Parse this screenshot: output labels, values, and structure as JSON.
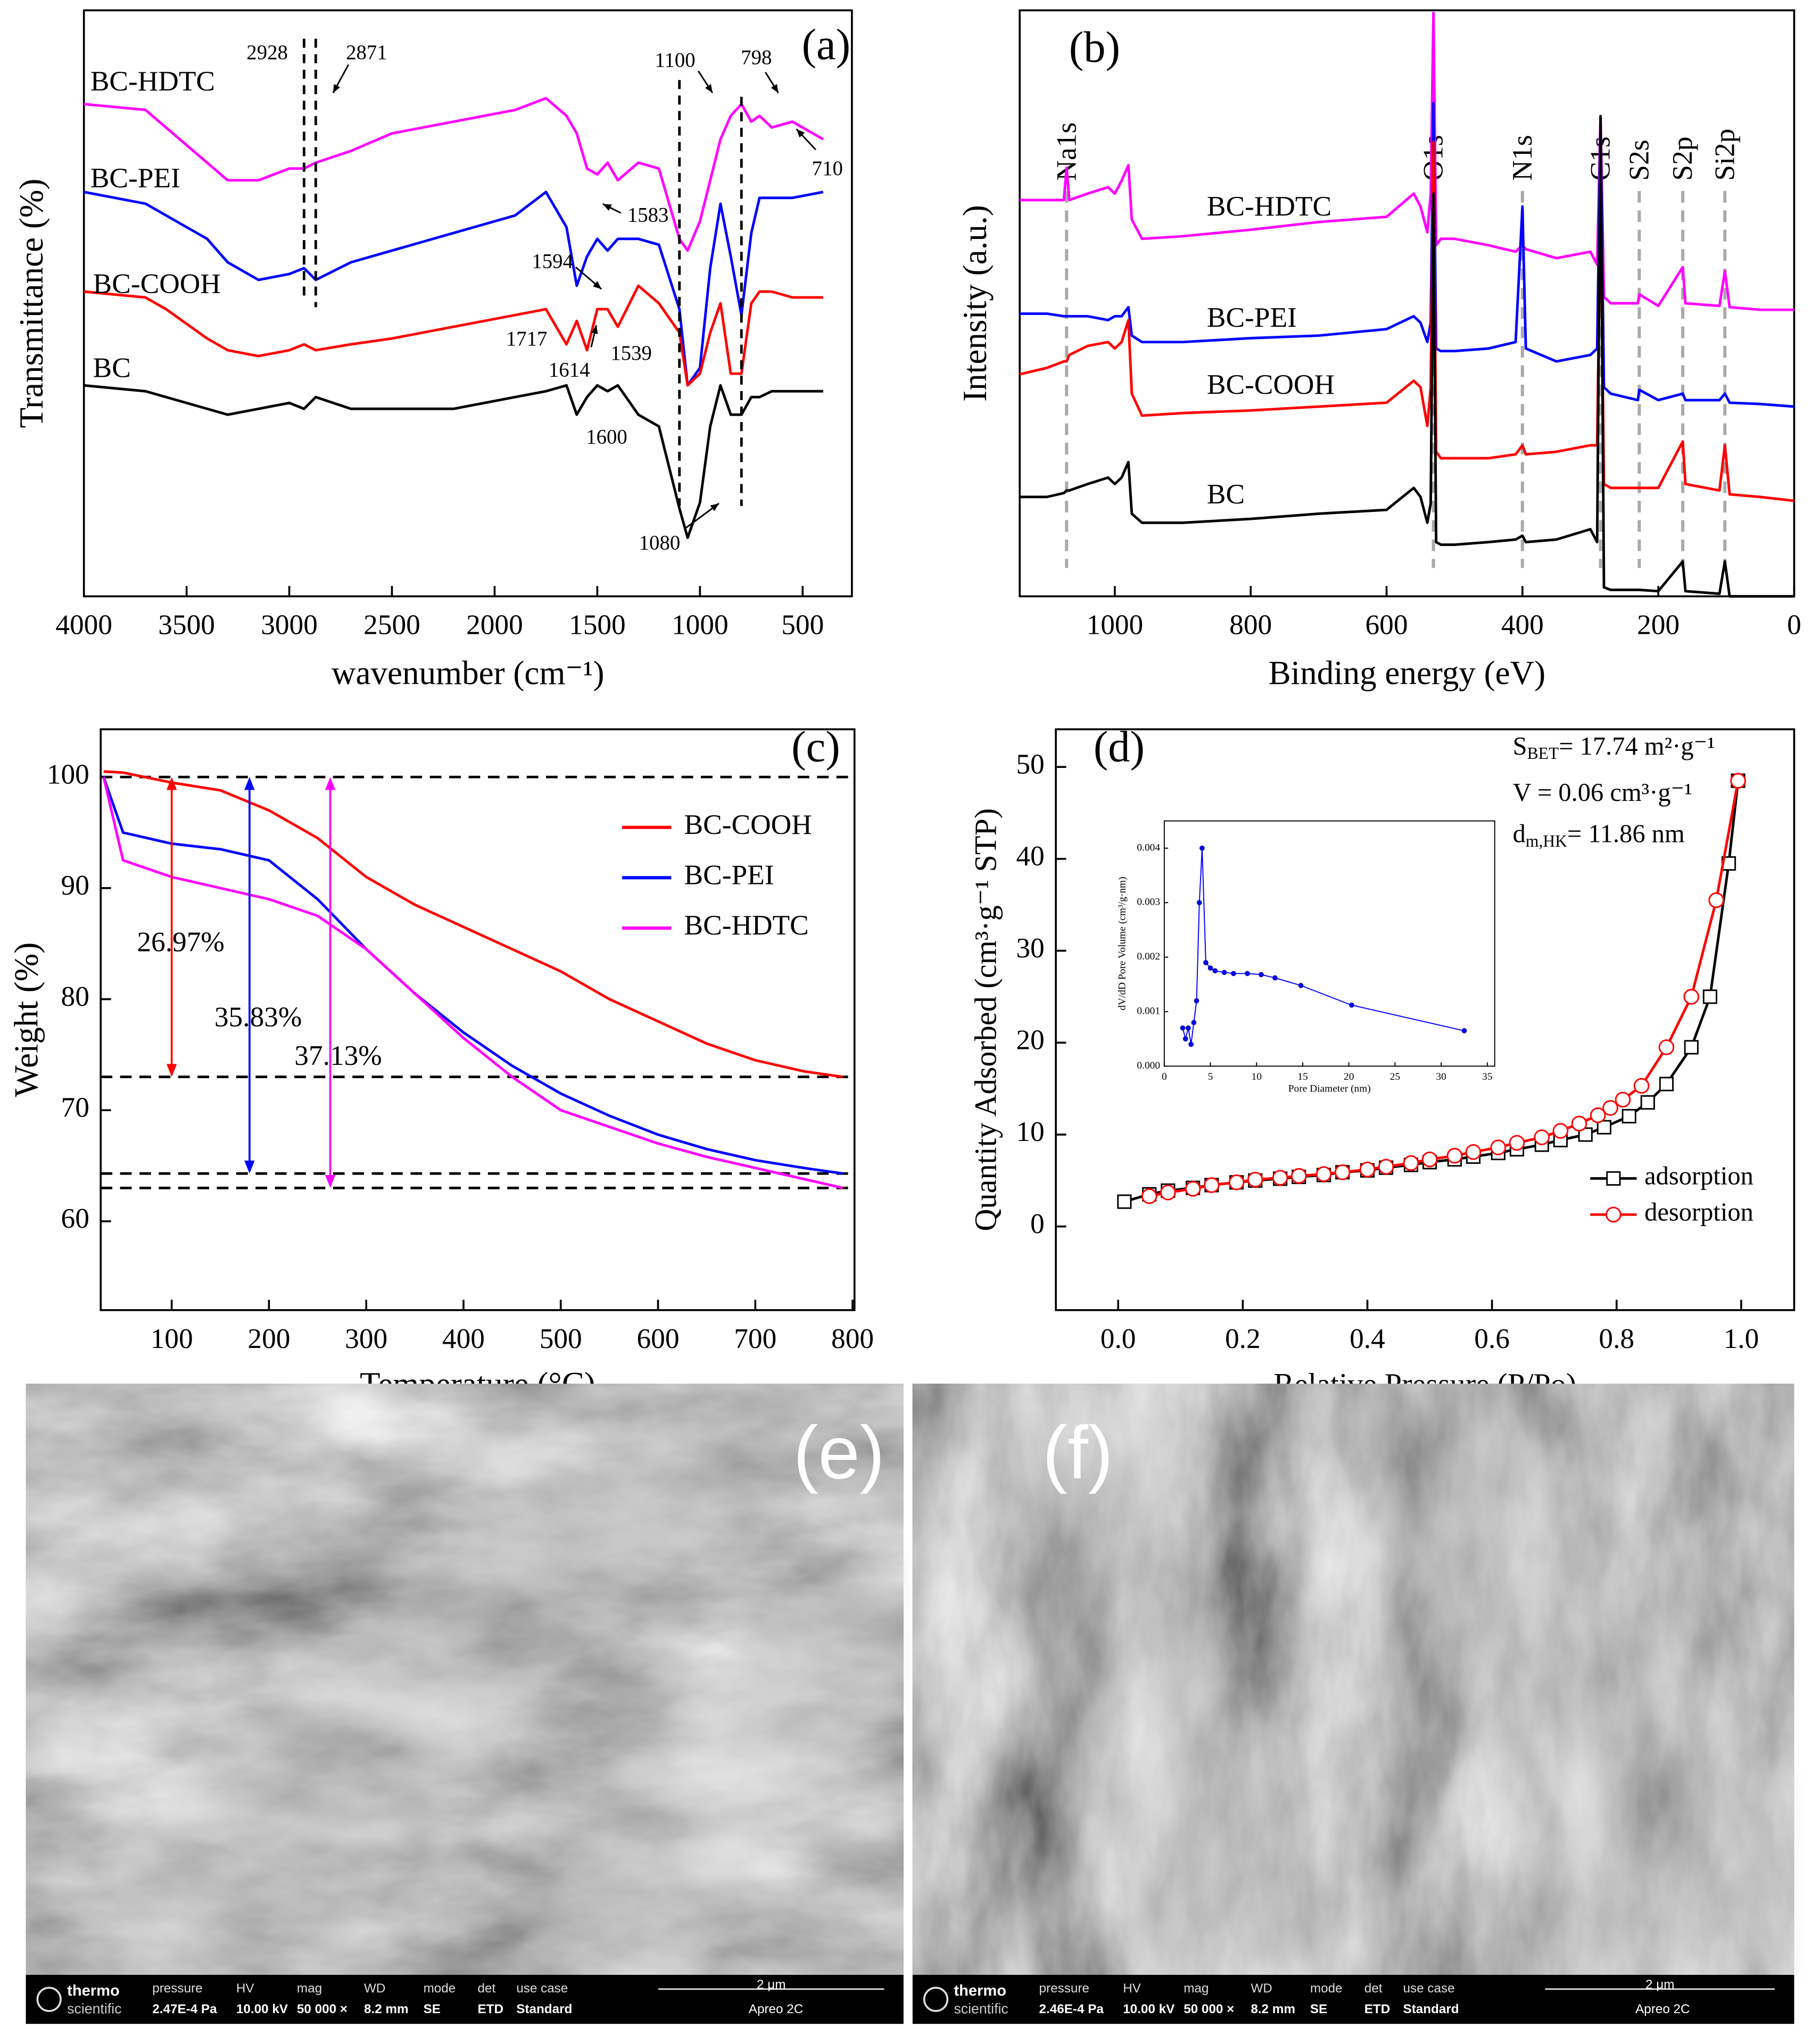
{
  "chart_data": [
    {
      "type": "line",
      "panel_label": "(a)",
      "x_label": "wavenumber (cm⁻¹)",
      "y_label": "Transmittance (%)",
      "xlim": [
        4000,
        260
      ],
      "ylim": [
        0,
        100
      ],
      "xticks": [
        4000,
        3500,
        3000,
        2500,
        2000,
        1500,
        1000,
        500
      ],
      "x": [
        4000,
        3700,
        3600,
        3400,
        3300,
        3150,
        3000,
        2928,
        2871,
        2700,
        2500,
        2200,
        1900,
        1750,
        1650,
        1600,
        1550,
        1500,
        1450,
        1400,
        1300,
        1200,
        1100,
        1060,
        1000,
        950,
        900,
        850,
        798,
        750,
        710,
        650,
        550,
        400
      ],
      "series": [
        {
          "name": "BC-HDTC",
          "color": "#ff00ff",
          "values": [
            84,
            83,
            80,
            74,
            71,
            71,
            73,
            73,
            74,
            76,
            79,
            81,
            83,
            85,
            82,
            79,
            73,
            72,
            74,
            71,
            74,
            73,
            61,
            59,
            64,
            71,
            78,
            82,
            84,
            81,
            82,
            80,
            81,
            78
          ]
        },
        {
          "name": "BC-PEI",
          "color": "#0000ff",
          "values": [
            69,
            67,
            65,
            61,
            57,
            54,
            55,
            56,
            54,
            57,
            59,
            62,
            65,
            69,
            63,
            53,
            58,
            61,
            59,
            61,
            61,
            60,
            49,
            36,
            39,
            56,
            67,
            58,
            48,
            62,
            68,
            68,
            68,
            69
          ]
        },
        {
          "name": "BC-COOH",
          "color": "#ff0000",
          "values": [
            52,
            51,
            49,
            44,
            42,
            41,
            42,
            43,
            42,
            43,
            44,
            46,
            48,
            49,
            43,
            47,
            42,
            49,
            49,
            46,
            53,
            50,
            45,
            36,
            38,
            45,
            50,
            38,
            38,
            50,
            52,
            52,
            51,
            51
          ]
        },
        {
          "name": "BC",
          "color": "#000000",
          "values": [
            36,
            35,
            34,
            32,
            31,
            32,
            33,
            32,
            34,
            32,
            32,
            32,
            34,
            35,
            36,
            31,
            34,
            36,
            35,
            36,
            31,
            29,
            15,
            10,
            16,
            29,
            36,
            31,
            31,
            34,
            34,
            35,
            35,
            35
          ]
        }
      ],
      "markers": [
        2928,
        2871,
        1100,
        798
      ],
      "annotations": [
        "2928",
        "2871",
        "1100",
        "798",
        "710",
        "1583",
        "1594",
        "1717",
        "1614",
        "1539",
        "1600",
        "1080"
      ]
    },
    {
      "type": "line",
      "panel_label": "(b)",
      "x_label": "Binding energy (eV)",
      "y_label": "Intensity (a.u.)",
      "xlim": [
        1140,
        0
      ],
      "ylim": [
        0,
        454
      ],
      "xticks": [
        1000,
        800,
        600,
        400,
        200,
        0
      ],
      "x": [
        1140,
        1100,
        1075,
        1071,
        1067,
        1040,
        1010,
        1000,
        990,
        980,
        975,
        960,
        900,
        800,
        700,
        600,
        560,
        550,
        540,
        535,
        531,
        527,
        520,
        500,
        450,
        410,
        400,
        395,
        350,
        300,
        290,
        285,
        280,
        270,
        230,
        228,
        200,
        164,
        160,
        110,
        102,
        95,
        50,
        0
      ],
      "series": [
        {
          "name": "BC-HDTC",
          "color": "#ff00ff",
          "values": [
            307,
            307,
            307,
            332,
            307,
            312,
            317,
            312,
            322,
            334,
            292,
            277,
            279,
            284,
            290,
            294,
            312,
            302,
            282,
            312,
            452,
            272,
            277,
            277,
            272,
            267,
            272,
            269,
            262,
            267,
            257,
            372,
            232,
            227,
            227,
            234,
            225,
            255,
            227,
            225,
            252,
            224,
            222,
            222
          ]
        },
        {
          "name": "BC-PEI",
          "color": "#0000ff",
          "values": [
            219,
            219,
            217,
            217,
            217,
            217,
            214,
            217,
            217,
            224,
            202,
            197,
            197,
            200,
            202,
            207,
            217,
            212,
            197,
            212,
            382,
            192,
            190,
            190,
            192,
            197,
            302,
            192,
            182,
            187,
            192,
            367,
            162,
            157,
            152,
            160,
            152,
            157,
            152,
            152,
            157,
            150,
            149,
            147
          ]
        },
        {
          "name": "BC-COOH",
          "color": "#ff0000",
          "values": [
            172,
            177,
            182,
            182,
            187,
            194,
            197,
            192,
            197,
            214,
            157,
            140,
            142,
            144,
            147,
            150,
            167,
            162,
            132,
            162,
            352,
            112,
            107,
            107,
            107,
            110,
            117,
            110,
            112,
            117,
            117,
            312,
            87,
            84,
            84,
            84,
            84,
            120,
            87,
            82,
            117,
            79,
            77,
            74
          ]
        },
        {
          "name": "BC",
          "color": "#000000",
          "values": [
            77,
            77,
            80,
            82,
            82,
            87,
            92,
            87,
            92,
            104,
            64,
            57,
            57,
            60,
            64,
            67,
            84,
            77,
            57,
            72,
            312,
            42,
            40,
            40,
            42,
            44,
            47,
            42,
            44,
            52,
            42,
            372,
            7,
            5,
            5,
            5,
            4,
            27,
            4,
            2,
            27,
            0,
            0,
            0
          ]
        }
      ],
      "peaks": [
        {
          "label": "Na1s",
          "x": 1071
        },
        {
          "label": "O1s",
          "x": 531
        },
        {
          "label": "N1s",
          "x": 400
        },
        {
          "label": "C1s",
          "x": 285
        },
        {
          "label": "S2s",
          "x": 228
        },
        {
          "label": "S2p",
          "x": 164
        },
        {
          "label": "Si2p",
          "x": 102
        }
      ]
    },
    {
      "type": "line",
      "panel_label": "(c)",
      "x_label": "Temperature (°C)",
      "y_label": "Weight (%)",
      "xlim": [
        27,
        802
      ],
      "ylim": [
        52,
        104.3
      ],
      "xticks": [
        100,
        200,
        300,
        400,
        500,
        600,
        700,
        800
      ],
      "yticks": [
        60,
        70,
        80,
        90,
        100
      ],
      "x": [
        30,
        50,
        100,
        150,
        200,
        250,
        300,
        350,
        400,
        450,
        500,
        550,
        600,
        650,
        700,
        750,
        790
      ],
      "series": [
        {
          "name": "BC-COOH",
          "color": "#ff0000",
          "values": [
            100.5,
            100.4,
            99.5,
            98.8,
            97,
            94.5,
            91,
            88.5,
            86.5,
            84.5,
            82.5,
            80,
            78,
            76,
            74.5,
            73.5,
            73
          ]
        },
        {
          "name": "BC-PEI",
          "color": "#0000ff",
          "values": [
            100,
            95,
            94,
            93.5,
            92.5,
            89,
            84.5,
            80.5,
            77,
            74,
            71.5,
            69.5,
            67.8,
            66.5,
            65.5,
            64.8,
            64.3
          ]
        },
        {
          "name": "BC-HDTC",
          "color": "#ff00ff",
          "values": [
            100,
            92.5,
            91,
            90,
            89,
            87.5,
            84.5,
            80.5,
            76.5,
            73,
            70,
            68.5,
            67,
            65.8,
            64.8,
            63.8,
            63
          ]
        }
      ],
      "legend": "upper right",
      "reference_lines": [
        100,
        73,
        64.3,
        63
      ],
      "arrows": [
        {
          "x": 100,
          "from": 100,
          "to": 73,
          "color": "#ff0000",
          "label": "26.97%"
        },
        {
          "x": 180,
          "from": 100,
          "to": 64.3,
          "color": "#0000ff",
          "label": "35.83%"
        },
        {
          "x": 263,
          "from": 100,
          "to": 63,
          "color": "#ff00ff",
          "label": "37.13%"
        }
      ]
    },
    {
      "type": "line",
      "panel_label": "(d)",
      "x_label": "Relative Pressure (P/Po)",
      "y_label": "Quantity Adsorbed (cm³·g⁻¹ STP)",
      "xlim": [
        -0.1,
        1.085
      ],
      "ylim": [
        -9.1,
        54.1
      ],
      "xticks": [
        {
          "value": 0,
          "label": "0.0"
        },
        0.2,
        0.4,
        0.6,
        0.8,
        {
          "value": 1,
          "label": "1.0"
        }
      ],
      "yticks": [
        0,
        10,
        20,
        30,
        40,
        50
      ],
      "series": [
        {
          "name": "adsorption",
          "color": "#000000",
          "marker": "square",
          "x": [
            0.01,
            0.05,
            0.08,
            0.12,
            0.15,
            0.19,
            0.22,
            0.26,
            0.29,
            0.33,
            0.36,
            0.4,
            0.43,
            0.47,
            0.5,
            0.54,
            0.57,
            0.61,
            0.64,
            0.68,
            0.71,
            0.75,
            0.78,
            0.82,
            0.85,
            0.88,
            0.92,
            0.95,
            0.98,
            0.995
          ],
          "values": [
            2.7,
            3.5,
            3.9,
            4.2,
            4.5,
            4.8,
            5,
            5.2,
            5.4,
            5.6,
            5.9,
            6.1,
            6.4,
            6.7,
            7,
            7.3,
            7.6,
            8,
            8.4,
            8.9,
            9.4,
            10,
            10.8,
            12,
            13.5,
            15.5,
            19.5,
            25,
            39.5,
            48.5
          ]
        },
        {
          "name": "desorption",
          "color": "#ff0000",
          "marker": "circle",
          "x": [
            0.05,
            0.08,
            0.12,
            0.15,
            0.19,
            0.22,
            0.26,
            0.29,
            0.33,
            0.36,
            0.4,
            0.43,
            0.47,
            0.5,
            0.54,
            0.57,
            0.61,
            0.64,
            0.68,
            0.71,
            0.74,
            0.77,
            0.79,
            0.81,
            0.84,
            0.88,
            0.92,
            0.96,
            0.995
          ],
          "values": [
            3.3,
            3.7,
            4.1,
            4.5,
            4.8,
            5.1,
            5.3,
            5.5,
            5.7,
            5.9,
            6.2,
            6.5,
            6.9,
            7.3,
            7.7,
            8.1,
            8.6,
            9.1,
            9.7,
            10.4,
            11.2,
            12.1,
            12.9,
            13.8,
            15.3,
            19.5,
            25,
            35.5,
            48.5
          ]
        }
      ],
      "legend": "lower right",
      "annotations": [
        {
          "main": "S",
          "sub": "BET",
          "rest": "= 17.74 m²·g⁻¹"
        },
        {
          "main": "V = 0.06 cm³·g⁻¹"
        },
        {
          "main": "d",
          "sub": "m,HK",
          "rest": "= 11.86 nm"
        }
      ]
    },
    {
      "type": "line",
      "x_label": "Pore Diameter (nm)",
      "y_label": "dV/dD Pore Volume (cm³/g·nm)",
      "xlim": [
        0,
        35.8
      ],
      "ylim": [
        0,
        0.0045
      ],
      "xticks": [
        0,
        5,
        10,
        15,
        20,
        25,
        30,
        35
      ],
      "yticks": [
        {
          "value": 0,
          "label": "0.000"
        },
        {
          "value": 0.001,
          "label": "0.001"
        },
        {
          "value": 0.002,
          "label": "0.002"
        },
        {
          "value": 0.003,
          "label": "0.003"
        },
        {
          "value": 0.004,
          "label": "0.004"
        }
      ],
      "series": [
        {
          "color": "#0000ff",
          "marker": "dot",
          "x": [
            2,
            2.3,
            2.6,
            2.9,
            3.2,
            3.5,
            3.8,
            4.1,
            4.5,
            5,
            5.5,
            6.5,
            7.5,
            9,
            10.5,
            12,
            14.8,
            20.3,
            32.5
          ],
          "values": [
            0.0007,
            0.0005,
            0.0007,
            0.0004,
            0.0008,
            0.0012,
            0.003,
            0.004,
            0.0019,
            0.0018,
            0.00175,
            0.00172,
            0.0017,
            0.0017,
            0.00168,
            0.00162,
            0.00148,
            0.00112,
            0.00065
          ]
        }
      ]
    }
  ],
  "images": [
    {
      "label": "(e)",
      "footer": {
        "brand": [
          "thermo",
          "scientific"
        ],
        "fields": [
          {
            "name": "pressure",
            "value": "2.47E-4 Pa"
          },
          {
            "name": "HV",
            "value": "10.00 kV"
          },
          {
            "name": "mag",
            "value": "50 000 ×"
          },
          {
            "name": "WD",
            "value": "8.2 mm"
          },
          {
            "name": "mode",
            "value": "SE"
          },
          {
            "name": "det",
            "value": "ETD"
          },
          {
            "name": "use case",
            "value": "Standard"
          }
        ],
        "scale": "2 μm",
        "instrument": "Apreo 2C"
      }
    },
    {
      "label": "(f)",
      "footer": {
        "brand": [
          "thermo",
          "scientific"
        ],
        "fields": [
          {
            "name": "pressure",
            "value": "2.46E-4 Pa"
          },
          {
            "name": "HV",
            "value": "10.00 kV"
          },
          {
            "name": "mag",
            "value": "50 000 ×"
          },
          {
            "name": "WD",
            "value": "8.2 mm"
          },
          {
            "name": "mode",
            "value": "SE"
          },
          {
            "name": "det",
            "value": "ETD"
          },
          {
            "name": "use case",
            "value": "Standard"
          }
        ],
        "scale": "2 μm",
        "instrument": "Apreo 2C"
      }
    }
  ]
}
